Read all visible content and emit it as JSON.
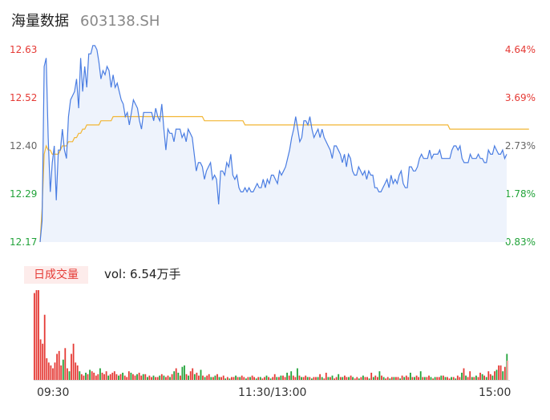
{
  "header": {
    "title": "海量数据",
    "code": "603138.SH"
  },
  "volume": {
    "tag": "日成交量",
    "label": "vol: 6.54万手"
  },
  "colors": {
    "price": "#4a7de2",
    "avg": "#f2b634",
    "up": "#e53a35",
    "down": "#22a33a",
    "neutral": "#888888"
  },
  "chart_data": [
    {
      "type": "line",
      "title": "",
      "y_left_ticks": [
        "12.63",
        "12.52",
        "12.40",
        "12.29",
        "12.17"
      ],
      "y_right_ticks": [
        "4.64%",
        "3.69%",
        "2.73%",
        "1.78%",
        "0.83%"
      ],
      "ylim": [
        12.17,
        12.63
      ],
      "x_ticks": [
        "09:30",
        "11:30/13:00",
        "15:00"
      ],
      "series": [
        {
          "values": [
            12.17,
            12.22,
            12.59,
            12.61,
            12.42,
            12.29,
            12.36,
            12.4,
            12.27,
            12.39,
            12.39,
            12.44,
            12.39,
            12.37,
            12.47,
            12.51,
            12.52,
            12.53,
            12.56,
            12.49,
            12.61,
            12.53,
            12.59,
            12.54,
            12.62,
            12.62,
            12.64,
            12.64,
            12.63,
            12.6,
            12.56,
            12.58,
            12.57,
            12.59,
            12.58,
            12.54,
            12.57,
            12.54,
            12.55,
            12.53,
            12.51,
            12.5,
            12.47,
            12.48,
            12.45,
            12.48,
            12.51,
            12.5,
            12.49,
            12.46,
            12.44,
            12.48,
            12.48,
            12.48,
            12.48,
            12.48,
            12.46,
            12.49,
            12.47,
            12.46,
            12.5,
            12.44,
            12.39,
            12.44,
            12.43,
            12.43,
            12.41,
            12.44,
            12.44,
            12.44,
            12.42,
            12.43,
            12.41,
            12.44,
            12.43,
            12.42,
            12.38,
            12.34,
            12.36,
            12.36,
            12.35,
            12.32,
            12.34,
            12.35,
            12.36,
            12.32,
            12.33,
            12.32,
            12.26,
            12.34,
            12.34,
            12.33,
            12.36,
            12.35,
            12.38,
            12.33,
            12.32,
            12.33,
            12.3,
            12.29,
            12.29,
            12.3,
            12.29,
            12.3,
            12.29,
            12.29,
            12.3,
            12.31,
            12.3,
            12.3,
            12.32,
            12.3,
            12.32,
            12.31,
            12.33,
            12.33,
            12.32,
            12.31,
            12.34,
            12.33,
            12.34,
            12.35,
            12.37,
            12.39,
            12.42,
            12.44,
            12.47,
            12.44,
            12.41,
            12.42,
            12.46,
            12.46,
            12.45,
            12.47,
            12.44,
            12.42,
            12.43,
            12.44,
            12.42,
            12.44,
            12.42,
            12.41,
            12.4,
            12.39,
            12.37,
            12.4,
            12.4,
            12.39,
            12.38,
            12.36,
            12.38,
            12.35,
            12.38,
            12.37,
            12.34,
            12.33,
            12.33,
            12.35,
            12.34,
            12.33,
            12.34,
            12.32,
            12.34,
            12.33,
            12.33,
            12.3,
            12.3,
            12.29,
            12.29,
            12.3,
            12.31,
            12.32,
            12.3,
            12.33,
            12.31,
            12.32,
            12.31,
            12.33,
            12.34,
            12.31,
            12.3,
            12.3,
            12.35,
            12.35,
            12.34,
            12.34,
            12.35,
            12.37,
            12.38,
            12.37,
            12.37,
            12.37,
            12.39,
            12.37,
            12.38,
            12.38,
            12.38,
            12.39,
            12.37,
            12.37,
            12.37,
            12.37,
            12.37,
            12.39,
            12.4,
            12.4,
            12.39,
            12.4,
            12.37,
            12.36,
            12.36,
            12.36,
            12.38,
            12.37,
            12.37,
            12.37,
            12.38,
            12.37,
            12.37,
            12.36,
            12.36,
            12.39,
            12.38,
            12.38,
            12.4,
            12.39,
            12.38,
            12.38,
            12.39,
            12.37,
            12.38
          ]
        },
        {
          "values": [
            12.17,
            12.25,
            12.38,
            12.4,
            12.39,
            12.39,
            12.38,
            12.38,
            12.38,
            12.38,
            12.39,
            12.4,
            12.4,
            12.4,
            12.41,
            12.41,
            12.41,
            12.42,
            12.42,
            12.43,
            12.43,
            12.44,
            12.44,
            12.45,
            12.45,
            12.45,
            12.45,
            12.45,
            12.45,
            12.45,
            12.46,
            12.46,
            12.46,
            12.46,
            12.46,
            12.46,
            12.47,
            12.47,
            12.47,
            12.47,
            12.47,
            12.47,
            12.47,
            12.47,
            12.47,
            12.47,
            12.47,
            12.47,
            12.47,
            12.47,
            12.47,
            12.47,
            12.47,
            12.47,
            12.47,
            12.47,
            12.47,
            12.47,
            12.47,
            12.47,
            12.47,
            12.47,
            12.47,
            12.47,
            12.47,
            12.47,
            12.47,
            12.47,
            12.47,
            12.47,
            12.47,
            12.47,
            12.47,
            12.47,
            12.47,
            12.47,
            12.47,
            12.47,
            12.47,
            12.47,
            12.47,
            12.46,
            12.46,
            12.46,
            12.46,
            12.46,
            12.46,
            12.46,
            12.46,
            12.46,
            12.46,
            12.46,
            12.46,
            12.46,
            12.46,
            12.46,
            12.46,
            12.46,
            12.46,
            12.46,
            12.46,
            12.45,
            12.45,
            12.45,
            12.45,
            12.45,
            12.45,
            12.45,
            12.45,
            12.45,
            12.45,
            12.45,
            12.45,
            12.45,
            12.45,
            12.45,
            12.45,
            12.45,
            12.45,
            12.45,
            12.45,
            12.45,
            12.45,
            12.45,
            12.45,
            12.45,
            12.45,
            12.45,
            12.45,
            12.45,
            12.45,
            12.45,
            12.45,
            12.45,
            12.45,
            12.45,
            12.45,
            12.45,
            12.45,
            12.45,
            12.45,
            12.45,
            12.45,
            12.45,
            12.45,
            12.45,
            12.45,
            12.45,
            12.45,
            12.45,
            12.45,
            12.45,
            12.45,
            12.45,
            12.45,
            12.45,
            12.45,
            12.45,
            12.45,
            12.45,
            12.45,
            12.45,
            12.45,
            12.45,
            12.45,
            12.45,
            12.45,
            12.45,
            12.45,
            12.45,
            12.45,
            12.45,
            12.45,
            12.45,
            12.45,
            12.45,
            12.45,
            12.45,
            12.45,
            12.45,
            12.45,
            12.45,
            12.45,
            12.45,
            12.45,
            12.45,
            12.45,
            12.45,
            12.45,
            12.45,
            12.45,
            12.45,
            12.45,
            12.45,
            12.45,
            12.45,
            12.45,
            12.45,
            12.45,
            12.45,
            12.45,
            12.45,
            12.44,
            12.44,
            12.44,
            12.44,
            12.44,
            12.44,
            12.44,
            12.44,
            12.44,
            12.44,
            12.44,
            12.44,
            12.44,
            12.44,
            12.44,
            12.44,
            12.44,
            12.44,
            12.44,
            12.44,
            12.44,
            12.44,
            12.44,
            12.44,
            12.44,
            12.44,
            12.44,
            12.44,
            12.44,
            12.44,
            12.44,
            12.44,
            12.44,
            12.44,
            12.44,
            12.44,
            12.44,
            12.44,
            12.44,
            12.44
          ]
        }
      ]
    },
    {
      "type": "bar",
      "title": "",
      "colors_by_direction": [
        "up",
        "down"
      ],
      "values": [
        0.6,
        0.62,
        0.62,
        0.28,
        0.25,
        0.45,
        0.15,
        0.12,
        0.1,
        0.08,
        0.12,
        0.18,
        0.2,
        0.1,
        0.14,
        0.22,
        0.08,
        0.06,
        0.18,
        0.25,
        0.12,
        0.1,
        0.06,
        0.04,
        0.03,
        0.05,
        0.04,
        0.07,
        0.06,
        0.05,
        0.03,
        0.04,
        0.08,
        0.05,
        0.04,
        0.06,
        0.03,
        0.04,
        0.05,
        0.06,
        0.04,
        0.03,
        0.04,
        0.05,
        0.03,
        0.02,
        0.06,
        0.05,
        0.04,
        0.03,
        0.04,
        0.05,
        0.03,
        0.04,
        0.04,
        0.02,
        0.03,
        0.02,
        0.03,
        0.02,
        0.02,
        0.03,
        0.04,
        0.03,
        0.02,
        0.03,
        0.02,
        0.04,
        0.06,
        0.08,
        0.05,
        0.03,
        0.09,
        0.1,
        0.04,
        0.03,
        0.06,
        0.08,
        0.04,
        0.05,
        0.03,
        0.07,
        0.03,
        0.02,
        0.03,
        0.04,
        0.02,
        0.02,
        0.03,
        0.04,
        0.02,
        0.02,
        0.03,
        0.01,
        0.02,
        0.01,
        0.02,
        0.02,
        0.03,
        0.02,
        0.02,
        0.03,
        0.02,
        0.01,
        0.02,
        0.02,
        0.03,
        0.02,
        0.01,
        0.02,
        0.02,
        0.01,
        0.02,
        0.03,
        0.02,
        0.01,
        0.02,
        0.04,
        0.02,
        0.02,
        0.03,
        0.03,
        0.02,
        0.05,
        0.03,
        0.06,
        0.03,
        0.02,
        0.08,
        0.03,
        0.02,
        0.02,
        0.03,
        0.02,
        0.02,
        0.01,
        0.02,
        0.02,
        0.02,
        0.04,
        0.02,
        0.01,
        0.05,
        0.02,
        0.02,
        0.03,
        0.01,
        0.02,
        0.04,
        0.02,
        0.02,
        0.03,
        0.02,
        0.02,
        0.03,
        0.02,
        0.01,
        0.02,
        0.01,
        0.02,
        0.03,
        0.02,
        0.02,
        0.01,
        0.05,
        0.02,
        0.03,
        0.02,
        0.06,
        0.03,
        0.02,
        0.01,
        0.02,
        0.01,
        0.02,
        0.02,
        0.02,
        0.02,
        0.01,
        0.03,
        0.02,
        0.03,
        0.02,
        0.05,
        0.02,
        0.02,
        0.03,
        0.02,
        0.06,
        0.02,
        0.02,
        0.02,
        0.03,
        0.02,
        0.01,
        0.02,
        0.02,
        0.02,
        0.03,
        0.03,
        0.02,
        0.02,
        0.01,
        0.02,
        0.02,
        0.01,
        0.03,
        0.02,
        0.05,
        0.08,
        0.03,
        0.02,
        0.06,
        0.02,
        0.02,
        0.03,
        0.02,
        0.05,
        0.04,
        0.03,
        0.02,
        0.06,
        0.04,
        0.03,
        0.06,
        0.07,
        0.1,
        0.1,
        0.06,
        0.09,
        0.18
      ],
      "up": [
        1,
        1,
        1,
        1,
        1,
        1,
        1,
        1,
        1,
        1,
        1,
        1,
        1,
        1,
        0,
        1,
        1,
        0,
        1,
        1,
        1,
        1,
        0,
        1,
        1,
        0,
        1,
        0,
        1,
        1,
        1,
        1,
        0,
        1,
        1,
        1,
        0,
        1,
        1,
        1,
        1,
        0,
        1,
        0,
        1,
        1,
        1,
        0,
        1,
        1,
        0,
        1,
        1,
        0,
        1,
        0,
        1,
        1,
        0,
        1,
        1,
        0,
        1,
        0,
        1,
        1,
        0,
        1,
        0,
        1,
        0,
        1,
        0,
        0,
        1,
        0,
        1,
        1,
        0,
        1,
        1,
        0,
        1,
        0,
        1,
        1,
        0,
        1,
        0,
        1,
        0,
        1,
        1,
        0,
        1,
        0,
        1,
        1,
        0,
        1,
        0,
        1,
        1,
        0,
        1,
        0,
        1,
        1,
        0,
        1,
        0,
        1,
        1,
        0,
        1,
        0,
        1,
        1,
        0,
        1,
        0,
        1,
        1,
        0,
        1,
        0,
        1,
        1,
        0,
        1,
        0,
        1,
        1,
        0,
        1,
        0,
        1,
        1,
        0,
        1,
        0,
        1,
        1,
        0,
        1,
        0,
        1,
        1,
        0,
        1,
        0,
        1,
        1,
        0,
        1,
        0,
        1,
        1,
        0,
        1,
        0,
        1,
        1,
        0,
        1,
        0,
        1,
        1,
        0,
        1,
        0,
        1,
        1,
        0,
        1,
        0,
        1,
        1,
        0,
        1,
        0,
        1,
        1,
        0,
        1,
        0,
        1,
        1,
        0,
        1,
        0,
        1,
        1,
        0,
        1,
        0,
        1,
        1,
        0,
        1,
        0,
        1,
        1,
        0,
        1,
        0,
        1,
        1,
        0,
        1,
        0,
        1,
        1,
        0,
        1,
        0,
        1,
        1,
        0,
        1,
        0,
        1,
        1,
        0,
        1,
        0,
        1,
        1,
        0,
        1,
        0,
        1,
        1,
        0,
        1,
        0,
        1,
        1,
        1
      ]
    }
  ]
}
